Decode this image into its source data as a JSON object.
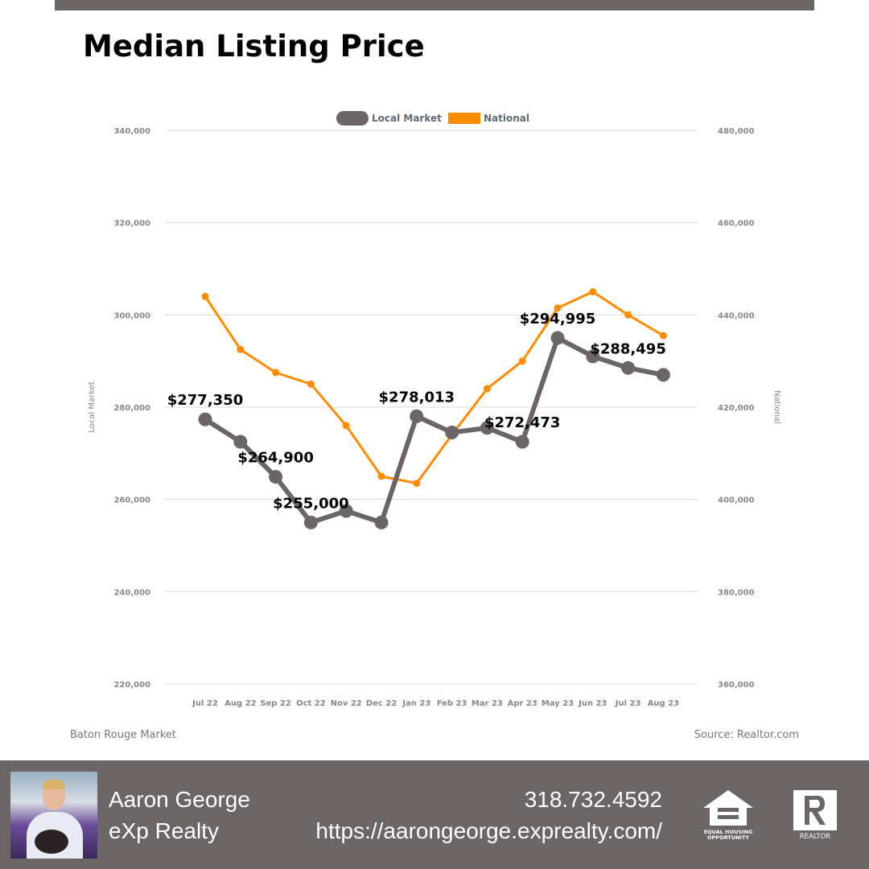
{
  "header": {
    "title": "Median Listing Price"
  },
  "chart_data": {
    "type": "line",
    "title": "Median Listing Price",
    "categories": [
      "Jul 22",
      "Aug 22",
      "Sep 22",
      "Oct 22",
      "Nov 22",
      "Dec 22",
      "Jan 23",
      "Feb 23",
      "Mar 23",
      "Apr 23",
      "May 23",
      "Jun 23",
      "Jul 23",
      "Aug 23"
    ],
    "left_axis": {
      "label": "Local Market",
      "ylim": [
        220000,
        340000
      ],
      "ticks": [
        "220,000",
        "240,000",
        "260,000",
        "280,000",
        "300,000",
        "320,000",
        "340,000"
      ]
    },
    "right_axis": {
      "label": "National",
      "ylim": [
        360000,
        480000
      ],
      "ticks": [
        "360,000",
        "380,000",
        "400,000",
        "420,000",
        "440,000",
        "460,000",
        "480,000"
      ]
    },
    "grid": true,
    "legend_position": "top-center",
    "series": [
      {
        "name": "Local Market",
        "axis": "left",
        "color": "#6b6566",
        "values": [
          277350,
          272500,
          264900,
          255000,
          257500,
          255000,
          278013,
          274500,
          275500,
          272473,
          294995,
          291000,
          288495,
          287000
        ],
        "data_labels": [
          {
            "index": 0,
            "text": "$277,350"
          },
          {
            "index": 2,
            "text": "$264,900"
          },
          {
            "index": 3,
            "text": "$255,000"
          },
          {
            "index": 6,
            "text": "$278,013"
          },
          {
            "index": 9,
            "text": "$272,473"
          },
          {
            "index": 10,
            "text": "$294,995"
          },
          {
            "index": 12,
            "text": "$288,495"
          }
        ]
      },
      {
        "name": "National",
        "axis": "right",
        "color": "#ff8c00",
        "values": [
          444000,
          432500,
          427500,
          425000,
          416000,
          405000,
          403500,
          414000,
          424000,
          430000,
          441500,
          445000,
          440000,
          435500
        ]
      }
    ]
  },
  "notes": {
    "market": "Baton Rouge Market",
    "source": "Source: Realtor.com"
  },
  "footer": {
    "agent_name": "Aaron George",
    "company": "eXp Realty",
    "phone": "318.732.4592",
    "website": "https://aarongeorge.exprealty.com/",
    "eho_line1": "EQUAL HOUSING",
    "eho_line2": "OPPORTUNITY",
    "realtor_text": "REALTOR"
  }
}
